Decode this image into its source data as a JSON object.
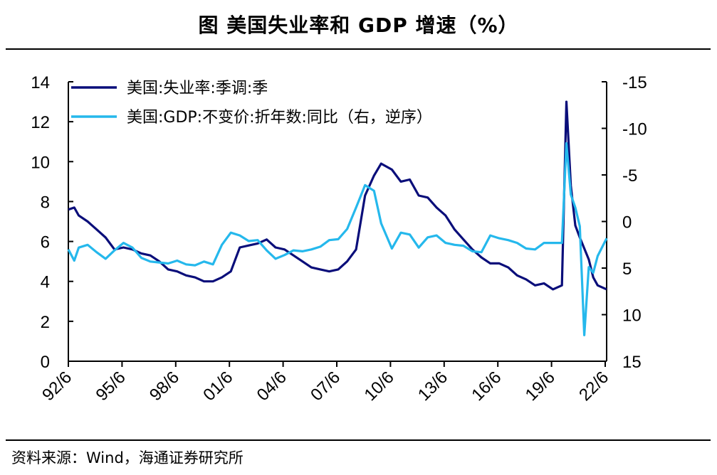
{
  "title": "图  美国失业率和 GDP 增速（%）",
  "source": "资料来源：Wind，海通证券研究所",
  "chart_data": {
    "type": "line",
    "x_tick_labels": [
      "92/6",
      "95/6",
      "98/6",
      "01/6",
      "04/6",
      "07/6",
      "10/6",
      "13/6",
      "16/6",
      "19/6",
      "22/6"
    ],
    "x_tick_years": [
      1992.42,
      1995.42,
      1998.42,
      2001.42,
      2004.42,
      2007.42,
      2010.42,
      2013.42,
      2016.42,
      2019.42,
      2022.42
    ],
    "x_range": [
      1992.42,
      2022.5
    ],
    "left_axis": {
      "range": [
        0,
        14
      ],
      "ticks": [
        0,
        2,
        4,
        6,
        8,
        10,
        12,
        14
      ],
      "tick_labels": [
        "0",
        "2",
        "4",
        "6",
        "8",
        "10",
        "12",
        "14"
      ]
    },
    "right_axis": {
      "range": [
        15,
        -15
      ],
      "reversed": true,
      "ticks": [
        15,
        10,
        5,
        0,
        -5,
        -10,
        -15
      ],
      "tick_labels": [
        "15",
        "10",
        "5",
        "0",
        "-5",
        "-10",
        "-15"
      ]
    },
    "series": [
      {
        "name": "美国:失业率:季调:季",
        "axis": "left",
        "color": "#0a0e7a",
        "points": [
          [
            1992.42,
            7.6
          ],
          [
            1992.75,
            7.7
          ],
          [
            1993.0,
            7.3
          ],
          [
            1993.5,
            7.0
          ],
          [
            1994.0,
            6.6
          ],
          [
            1994.5,
            6.2
          ],
          [
            1995.0,
            5.6
          ],
          [
            1995.5,
            5.7
          ],
          [
            1996.0,
            5.6
          ],
          [
            1996.5,
            5.4
          ],
          [
            1997.0,
            5.3
          ],
          [
            1997.5,
            5.0
          ],
          [
            1998.0,
            4.6
          ],
          [
            1998.5,
            4.5
          ],
          [
            1999.0,
            4.3
          ],
          [
            1999.5,
            4.2
          ],
          [
            2000.0,
            4.0
          ],
          [
            2000.5,
            4.0
          ],
          [
            2001.0,
            4.2
          ],
          [
            2001.5,
            4.5
          ],
          [
            2002.0,
            5.7
          ],
          [
            2002.5,
            5.8
          ],
          [
            2003.0,
            5.9
          ],
          [
            2003.5,
            6.1
          ],
          [
            2004.0,
            5.7
          ],
          [
            2004.5,
            5.6
          ],
          [
            2005.0,
            5.3
          ],
          [
            2005.5,
            5.0
          ],
          [
            2006.0,
            4.7
          ],
          [
            2006.5,
            4.6
          ],
          [
            2007.0,
            4.5
          ],
          [
            2007.5,
            4.6
          ],
          [
            2008.0,
            5.0
          ],
          [
            2008.5,
            5.6
          ],
          [
            2009.0,
            8.3
          ],
          [
            2009.5,
            9.3
          ],
          [
            2009.9,
            9.9
          ],
          [
            2010.5,
            9.6
          ],
          [
            2011.0,
            9.0
          ],
          [
            2011.5,
            9.1
          ],
          [
            2012.0,
            8.3
          ],
          [
            2012.5,
            8.2
          ],
          [
            2013.0,
            7.7
          ],
          [
            2013.5,
            7.3
          ],
          [
            2014.0,
            6.6
          ],
          [
            2014.5,
            6.1
          ],
          [
            2015.0,
            5.6
          ],
          [
            2015.5,
            5.2
          ],
          [
            2016.0,
            4.9
          ],
          [
            2016.5,
            4.9
          ],
          [
            2017.0,
            4.7
          ],
          [
            2017.5,
            4.3
          ],
          [
            2018.0,
            4.1
          ],
          [
            2018.5,
            3.8
          ],
          [
            2019.0,
            3.9
          ],
          [
            2019.5,
            3.6
          ],
          [
            2020.0,
            3.8
          ],
          [
            2020.25,
            13.0
          ],
          [
            2020.5,
            8.8
          ],
          [
            2020.75,
            6.8
          ],
          [
            2021.0,
            6.2
          ],
          [
            2021.5,
            5.1
          ],
          [
            2021.75,
            4.2
          ],
          [
            2022.0,
            3.8
          ],
          [
            2022.5,
            3.6
          ]
        ]
      },
      {
        "name": "美国:GDP:不变价:折年数:同比（右，逆序）",
        "axis": "right",
        "color": "#25b8ec",
        "points": [
          [
            1992.42,
            3.0
          ],
          [
            1992.75,
            4.2
          ],
          [
            1993.0,
            2.8
          ],
          [
            1993.5,
            2.5
          ],
          [
            1994.0,
            3.3
          ],
          [
            1994.5,
            4.0
          ],
          [
            1995.0,
            3.1
          ],
          [
            1995.5,
            2.3
          ],
          [
            1996.0,
            2.8
          ],
          [
            1996.5,
            3.9
          ],
          [
            1997.0,
            4.3
          ],
          [
            1997.5,
            4.4
          ],
          [
            1998.0,
            4.5
          ],
          [
            1998.5,
            4.2
          ],
          [
            1999.0,
            4.6
          ],
          [
            1999.5,
            4.7
          ],
          [
            2000.0,
            4.3
          ],
          [
            2000.5,
            4.6
          ],
          [
            2001.0,
            2.5
          ],
          [
            2001.5,
            1.2
          ],
          [
            2002.0,
            1.5
          ],
          [
            2002.5,
            2.1
          ],
          [
            2003.0,
            2.0
          ],
          [
            2003.5,
            3.1
          ],
          [
            2004.0,
            4.0
          ],
          [
            2004.5,
            3.6
          ],
          [
            2005.0,
            3.1
          ],
          [
            2005.5,
            3.2
          ],
          [
            2006.0,
            3.0
          ],
          [
            2006.5,
            2.7
          ],
          [
            2007.0,
            2.0
          ],
          [
            2007.5,
            1.9
          ],
          [
            2008.0,
            0.8
          ],
          [
            2008.5,
            -1.5
          ],
          [
            2009.0,
            -3.9
          ],
          [
            2009.5,
            -3.3
          ],
          [
            2009.9,
            0.2
          ],
          [
            2010.5,
            2.9
          ],
          [
            2011.0,
            1.2
          ],
          [
            2011.5,
            1.4
          ],
          [
            2012.0,
            2.8
          ],
          [
            2012.5,
            1.7
          ],
          [
            2013.0,
            1.5
          ],
          [
            2013.5,
            2.3
          ],
          [
            2014.0,
            2.5
          ],
          [
            2014.5,
            2.6
          ],
          [
            2015.0,
            3.2
          ],
          [
            2015.5,
            3.3
          ],
          [
            2016.0,
            1.5
          ],
          [
            2016.5,
            1.8
          ],
          [
            2017.0,
            2.0
          ],
          [
            2017.5,
            2.3
          ],
          [
            2018.0,
            2.9
          ],
          [
            2018.5,
            3.0
          ],
          [
            2019.0,
            2.3
          ],
          [
            2019.5,
            2.3
          ],
          [
            2020.0,
            2.3
          ],
          [
            2020.25,
            -8.4
          ],
          [
            2020.5,
            -2.9
          ],
          [
            2020.75,
            -1.5
          ],
          [
            2021.0,
            0.5
          ],
          [
            2021.25,
            12.2
          ],
          [
            2021.5,
            4.9
          ],
          [
            2021.75,
            5.5
          ],
          [
            2022.0,
            3.7
          ],
          [
            2022.5,
            1.8
          ]
        ]
      }
    ]
  }
}
